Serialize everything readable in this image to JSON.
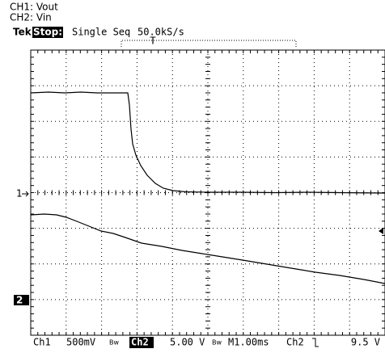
{
  "header": {
    "channel_labels": [
      "CH1: Vout",
      "CH2: Vin"
    ],
    "brand": "Tek",
    "state": "Stop:",
    "mode": "Single Seq",
    "sample_rate": "50.0kS/s",
    "trigger_marker": "T"
  },
  "markers": {
    "ch1": "1",
    "ch2": "2"
  },
  "footer": {
    "ch1": "Ch1",
    "ch1_scale": "500mV",
    "bw": "Bw",
    "ch2": "Ch2",
    "ch2_scale": "5.00 V",
    "timebase": "M1.00ms",
    "trigger_source": "Ch2",
    "trigger_level": "9.5 V"
  }
}
